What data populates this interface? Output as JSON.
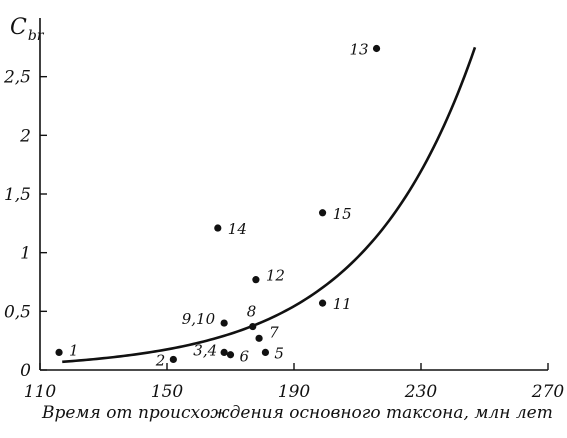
{
  "chart_data": {
    "type": "scatter",
    "title": "",
    "ylabel": "C_br",
    "ylabel_main": "C",
    "ylabel_sub": "br",
    "xlabel": "Время от происхождения основного таксона, млн лет",
    "xlim": [
      110,
      270
    ],
    "ylim": [
      0,
      3.0
    ],
    "x_ticks": [
      110,
      150,
      190,
      230,
      270
    ],
    "x_tick_labels": [
      "110",
      "150",
      "190",
      "230",
      "270"
    ],
    "y_ticks": [
      0,
      0.5,
      1,
      1.5,
      2,
      2.5
    ],
    "y_tick_labels": [
      "0",
      "0,5",
      "1",
      "1,5",
      "2",
      "2,5"
    ],
    "grid": false,
    "points": [
      {
        "label": "1",
        "x": 116,
        "y": 0.15
      },
      {
        "label": "2",
        "x": 152,
        "y": 0.09
      },
      {
        "label": "3,4",
        "x": 168,
        "y": 0.15
      },
      {
        "label": "6",
        "x": 170,
        "y": 0.13
      },
      {
        "label": "5",
        "x": 181,
        "y": 0.15
      },
      {
        "label": "7",
        "x": 179,
        "y": 0.27
      },
      {
        "label": "8",
        "x": 177,
        "y": 0.37
      },
      {
        "label": "9,10",
        "x": 168,
        "y": 0.4
      },
      {
        "label": "11",
        "x": 199,
        "y": 0.57
      },
      {
        "label": "12",
        "x": 178,
        "y": 0.77
      },
      {
        "label": "14",
        "x": 166,
        "y": 1.21
      },
      {
        "label": "15",
        "x": 199,
        "y": 1.34
      },
      {
        "label": "13",
        "x": 216,
        "y": 2.74
      }
    ],
    "curve": {
      "type": "exponential",
      "x_range": [
        117,
        247
      ],
      "y_start": 0.07,
      "y_end": 2.75,
      "growth_rate": 0.0285
    }
  }
}
